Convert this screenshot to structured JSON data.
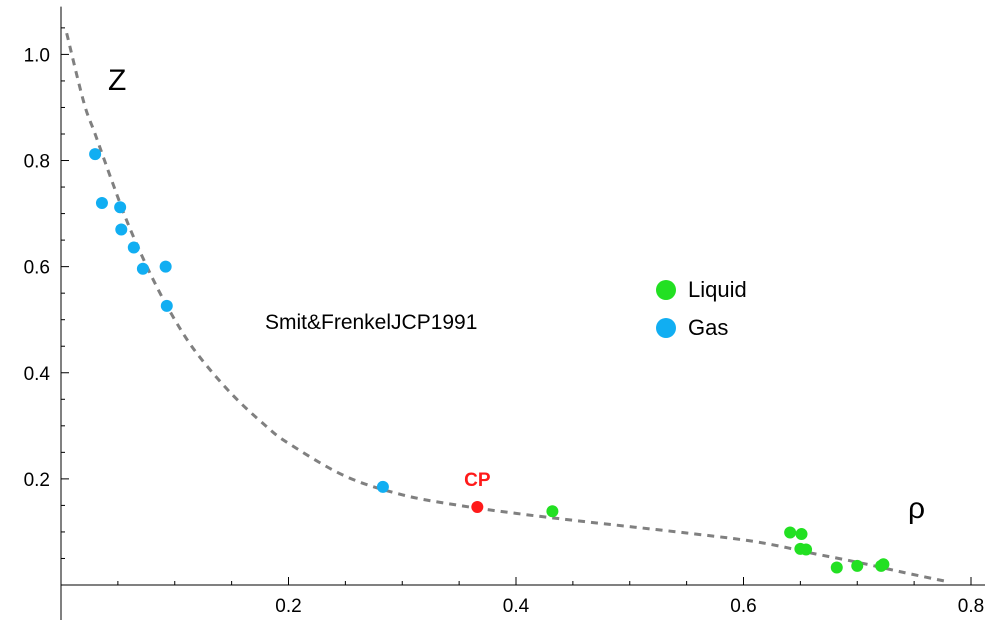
{
  "chart_data": {
    "type": "scatter",
    "xlabel": "ρ",
    "ylabel": "Z",
    "xlim": [
      0,
      0.82
    ],
    "ylim": [
      0,
      1.09
    ],
    "x_ticks": [
      0.2,
      0.4,
      0.6,
      0.8
    ],
    "y_ticks": [
      0.2,
      0.4,
      0.6,
      0.8,
      1.0
    ],
    "x_tick_labels": [
      "0.2",
      "0.4",
      "0.6",
      "0.8"
    ],
    "y_tick_labels": [
      "0.2",
      "0.4",
      "0.6",
      "0.8",
      "1.0"
    ],
    "x_minor_step": 0.05,
    "y_minor_step": 0.05,
    "grid": false,
    "legend_position": "right",
    "annotation": "Smit&FrenkelJCP1991",
    "series": [
      {
        "name": "Liquid",
        "color": "#22e022",
        "points": [
          [
            0.432,
            0.139
          ],
          [
            0.641,
            0.099
          ],
          [
            0.651,
            0.096
          ],
          [
            0.65,
            0.068
          ],
          [
            0.655,
            0.067
          ],
          [
            0.682,
            0.033
          ],
          [
            0.7,
            0.036
          ],
          [
            0.721,
            0.036
          ],
          [
            0.723,
            0.039
          ]
        ]
      },
      {
        "name": "Gas",
        "color": "#11aef2",
        "points": [
          [
            0.03,
            0.812
          ],
          [
            0.036,
            0.72
          ],
          [
            0.052,
            0.712
          ],
          [
            0.053,
            0.67
          ],
          [
            0.064,
            0.636
          ],
          [
            0.072,
            0.596
          ],
          [
            0.092,
            0.6
          ],
          [
            0.093,
            0.526
          ],
          [
            0.283,
            0.185
          ]
        ]
      }
    ],
    "critical_point": {
      "label": "CP",
      "x": 0.366,
      "y": 0.147,
      "color": "#ff1a1a"
    },
    "fit_curve": {
      "style": "dashed",
      "color": "#808080",
      "points": [
        [
          0.005,
          1.04
        ],
        [
          0.02,
          0.91
        ],
        [
          0.03,
          0.85
        ],
        [
          0.045,
          0.76
        ],
        [
          0.06,
          0.675
        ],
        [
          0.08,
          0.58
        ],
        [
          0.1,
          0.5
        ],
        [
          0.12,
          0.435
        ],
        [
          0.15,
          0.36
        ],
        [
          0.18,
          0.3
        ],
        [
          0.2,
          0.267
        ],
        [
          0.25,
          0.205
        ],
        [
          0.3,
          0.17
        ],
        [
          0.35,
          0.15
        ],
        [
          0.4,
          0.135
        ],
        [
          0.45,
          0.122
        ],
        [
          0.5,
          0.11
        ],
        [
          0.55,
          0.098
        ],
        [
          0.6,
          0.085
        ],
        [
          0.63,
          0.074
        ],
        [
          0.66,
          0.06
        ],
        [
          0.7,
          0.043
        ],
        [
          0.74,
          0.024
        ],
        [
          0.78,
          0.006
        ]
      ]
    }
  }
}
